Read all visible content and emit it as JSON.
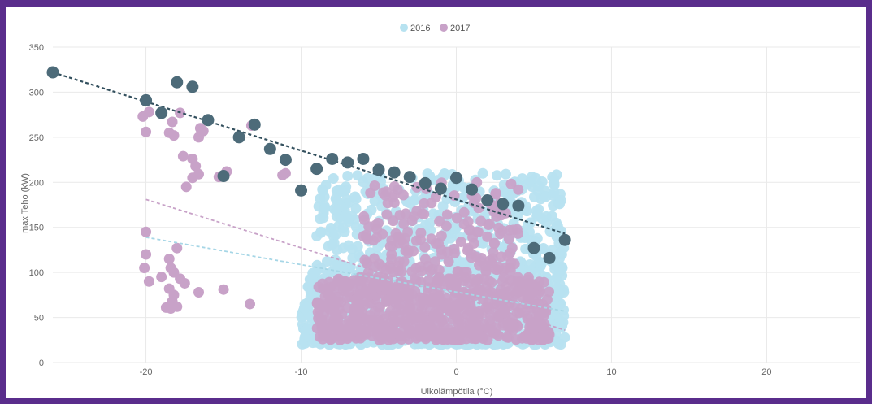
{
  "chart_data": {
    "type": "scatter",
    "xlabel": "Ulkolämpötila (°C)",
    "ylabel": "max Teho (kW)",
    "xlim": [
      -26,
      26
    ],
    "ylim": [
      0,
      350
    ],
    "x_ticks": [
      -20,
      -10,
      0,
      10,
      20
    ],
    "y_ticks": [
      0,
      50,
      100,
      150,
      200,
      250,
      300,
      350
    ],
    "grid": true,
    "legend_position": "top-center",
    "colors": {
      "2016": "#b7e2f0",
      "2017": "#c8a2c8",
      "max": "#4d6b79",
      "trend_2016": "#a6d6e6",
      "trend_max": "#33505e"
    },
    "legend": [
      {
        "name": "2016",
        "color": "#b7e2f0"
      },
      {
        "name": "2017",
        "color": "#c8a2c8"
      }
    ],
    "series": [
      {
        "name": "2016",
        "clusters": [
          {
            "x": [
              -10,
              7
            ],
            "y": [
              20,
              100
            ],
            "n": 900
          },
          {
            "x": [
              -9,
              7
            ],
            "y": [
              100,
              210
            ],
            "n": 420
          }
        ]
      },
      {
        "name": "2017",
        "points": [
          [
            -20,
            290
          ],
          [
            -20.2,
            273
          ],
          [
            -19.8,
            278
          ],
          [
            -20,
            256
          ],
          [
            -18.5,
            255
          ],
          [
            -18.2,
            252
          ],
          [
            -18.3,
            267
          ],
          [
            -17.8,
            277
          ],
          [
            -17.6,
            229
          ],
          [
            -17,
            226
          ],
          [
            -16.8,
            218
          ],
          [
            -16.6,
            250
          ],
          [
            -16.5,
            260
          ],
          [
            -16.3,
            257
          ],
          [
            -17,
            205
          ],
          [
            -17.4,
            195
          ],
          [
            -16.6,
            209
          ],
          [
            -15.3,
            206
          ],
          [
            -14.8,
            212
          ],
          [
            -13.2,
            263
          ],
          [
            -11.2,
            208
          ],
          [
            -11,
            210
          ],
          [
            -20,
            145
          ],
          [
            -20,
            120
          ],
          [
            -20.1,
            105
          ],
          [
            -19.8,
            90
          ],
          [
            -19,
            95
          ],
          [
            -18.5,
            115
          ],
          [
            -18.4,
            105
          ],
          [
            -18.2,
            100
          ],
          [
            -17.8,
            93
          ],
          [
            -17.5,
            88
          ],
          [
            -18.5,
            82
          ],
          [
            -18.2,
            75
          ],
          [
            -18.3,
            68
          ],
          [
            -18.7,
            61
          ],
          [
            -18.4,
            60
          ],
          [
            -18,
            62
          ],
          [
            -16.6,
            78
          ],
          [
            -15,
            81
          ],
          [
            -13.3,
            65
          ],
          [
            -18,
            127
          ]
        ],
        "clusters": [
          {
            "x": [
              -9,
              6
            ],
            "y": [
              25,
              95
            ],
            "n": 700
          },
          {
            "x": [
              -6,
              4
            ],
            "y": [
              100,
              200
            ],
            "n": 180
          }
        ]
      },
      {
        "name": "max",
        "points": [
          [
            -26,
            322
          ],
          [
            -20,
            291
          ],
          [
            -19,
            277
          ],
          [
            -18,
            311
          ],
          [
            -17,
            306
          ],
          [
            -16,
            269
          ],
          [
            -15,
            207
          ],
          [
            -14,
            250
          ],
          [
            -13,
            264
          ],
          [
            -12,
            237
          ],
          [
            -11,
            225
          ],
          [
            -10,
            191
          ],
          [
            -9,
            215
          ],
          [
            -8,
            226
          ],
          [
            -7,
            222
          ],
          [
            -6,
            226
          ],
          [
            -5,
            214
          ],
          [
            -4,
            211
          ],
          [
            -3,
            206
          ],
          [
            -2,
            199
          ],
          [
            -1,
            193
          ],
          [
            0,
            205
          ],
          [
            1,
            192
          ],
          [
            2,
            180
          ],
          [
            3,
            176
          ],
          [
            4,
            174
          ],
          [
            5,
            127
          ],
          [
            6,
            116
          ],
          [
            7,
            136
          ]
        ]
      }
    ],
    "trendlines": [
      {
        "series": "max",
        "x": [
          -26,
          7
        ],
        "y": [
          322,
          143
        ]
      },
      {
        "series": "2017",
        "x": [
          -20,
          7
        ],
        "y": [
          181,
          36
        ]
      },
      {
        "series": "2016",
        "x": [
          -20,
          7
        ],
        "y": [
          139,
          57
        ]
      }
    ]
  }
}
